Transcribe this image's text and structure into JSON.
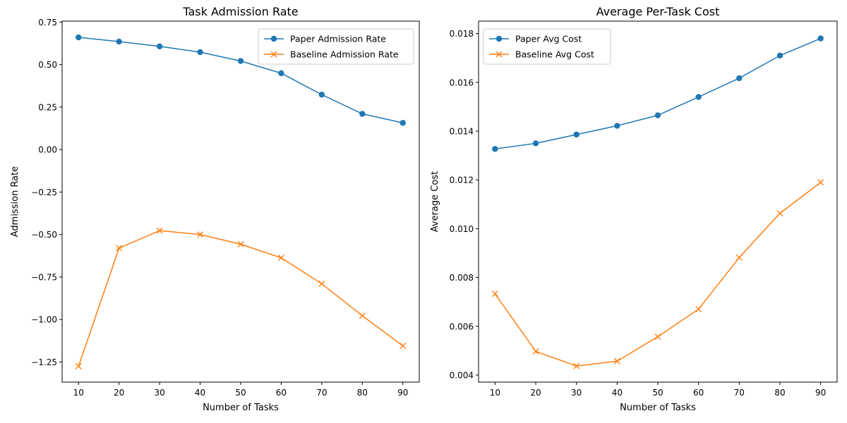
{
  "chart_data": [
    {
      "type": "line",
      "title": "Task Admission Rate",
      "xlabel": "Number of Tasks",
      "ylabel": "Admission Rate",
      "x": [
        10,
        20,
        30,
        40,
        50,
        60,
        70,
        80,
        90
      ],
      "xticks": [
        "10",
        "20",
        "30",
        "40",
        "50",
        "60",
        "70",
        "80",
        "90"
      ],
      "yticks": [
        -1.25,
        -1.0,
        -0.75,
        -0.5,
        -0.25,
        0.0,
        0.25,
        0.5,
        0.75
      ],
      "ytick_labels": [
        "−1.25",
        "−1.00",
        "−0.75",
        "−0.50",
        "−0.25",
        "0.00",
        "0.25",
        "0.50",
        "0.75"
      ],
      "xlim": [
        5.95,
        94.05
      ],
      "ylim": [
        -1.3685,
        0.7555
      ],
      "grid": false,
      "legend_position": "top-right",
      "series": [
        {
          "name": "Paper Admission Rate",
          "color": "#1f77b4",
          "marker": "circle",
          "values": [
            0.66,
            0.635,
            0.607,
            0.573,
            0.521,
            0.449,
            0.323,
            0.21,
            0.157
          ]
        },
        {
          "name": "Baseline Admission Rate",
          "color": "#ff7f0e",
          "marker": "x",
          "values": [
            -1.275,
            -0.58,
            -0.477,
            -0.5,
            -0.557,
            -0.637,
            -0.79,
            -0.978,
            -1.155
          ]
        }
      ]
    },
    {
      "type": "line",
      "title": "Average Per-Task Cost",
      "xlabel": "Number of Tasks",
      "ylabel": "Average Cost",
      "x": [
        10,
        20,
        30,
        40,
        50,
        60,
        70,
        80,
        90
      ],
      "xticks": [
        "10",
        "20",
        "30",
        "40",
        "50",
        "60",
        "70",
        "80",
        "90"
      ],
      "yticks": [
        0.004,
        0.006,
        0.008,
        0.01,
        0.012,
        0.014,
        0.016,
        0.018
      ],
      "ytick_labels": [
        "0.004",
        "0.006",
        "0.008",
        "0.010",
        "0.012",
        "0.014",
        "0.016",
        "0.018"
      ],
      "xlim": [
        5.95,
        94.05
      ],
      "ylim": [
        0.00371,
        0.01851
      ],
      "grid": false,
      "legend_position": "top-left",
      "series": [
        {
          "name": "Paper Avg Cost",
          "color": "#1f77b4",
          "marker": "circle",
          "values": [
            0.01327,
            0.0135,
            0.01386,
            0.01422,
            0.01465,
            0.0154,
            0.01617,
            0.0171,
            0.0178
          ]
        },
        {
          "name": "Baseline Avg Cost",
          "color": "#ff7f0e",
          "marker": "x",
          "values": [
            0.00733,
            0.00497,
            0.00437,
            0.00457,
            0.00557,
            0.0067,
            0.00882,
            0.01063,
            0.0119
          ]
        }
      ]
    }
  ]
}
